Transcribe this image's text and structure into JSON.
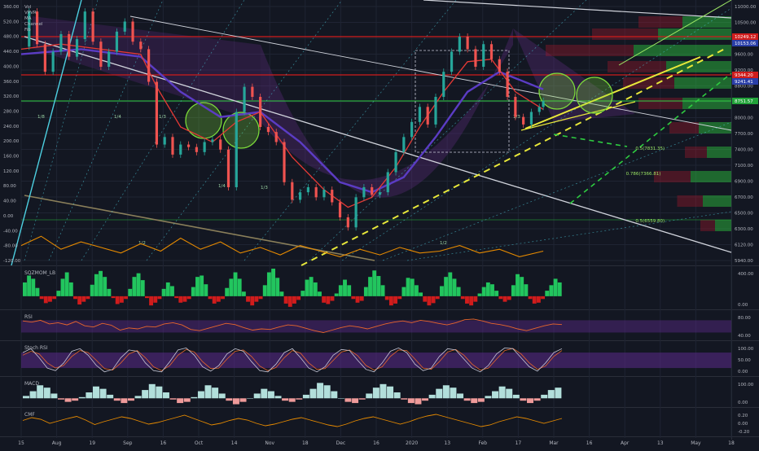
{
  "colors": {
    "background": "#131722",
    "grid": "#1f2433",
    "axis_text": "#b2b5be",
    "candle_up": "#26a69a",
    "candle_down": "#ef5350",
    "ema_fast": "#e53935",
    "ema_slow": "#5b3cc4",
    "volume_line": "#e68a00",
    "rsi_line": "#e8662b",
    "stoch_k": "#c7c7d6",
    "stoch_d": "#e8662b",
    "cmf_line": "#e68a00",
    "mom_up": "#22c55e",
    "mom_down": "#d01c1c",
    "yellow_trend": "#e8e83a",
    "green_trend": "#2ecc40",
    "circle": "#7ddc3a",
    "rsi_band": "#5b2a8a"
  },
  "chart_data": [
    {
      "type": "line",
      "name": "main-price",
      "candle_interval": "day",
      "x_tick_labels": [
        "15",
        "Aug",
        "19",
        "Sep",
        "16",
        "Oct",
        "14",
        "Nov",
        "18",
        "Dec",
        "16",
        "2020",
        "13",
        "Feb",
        "17",
        "Mar",
        "16",
        "Apr",
        "13",
        "May",
        "18"
      ],
      "left_axis_labels": [
        "360.00",
        "520.00",
        "480.00",
        "440.00",
        "400.00",
        "360.00",
        "320.00",
        "280.00",
        "240.00",
        "200.00",
        "160.00",
        "120.00",
        "80.00",
        "40.00",
        "0.00",
        "-40.00",
        "-80.00",
        "-120.00"
      ],
      "right_axis_labels": [
        "11000.00",
        "10500.00",
        "10000.00",
        "9600.00",
        "9200.00",
        "8800.00",
        "8400.00",
        "8000.00",
        "7700.00",
        "7400.00",
        "7100.00",
        "6900.00",
        "6700.00",
        "6500.00",
        "6300.00",
        "6120.00",
        "5940.00"
      ],
      "price_ylim": [
        5940,
        11000
      ],
      "legend_entries": [
        "Vol",
        "VPVR",
        "MA",
        "Channel",
        "Fib"
      ],
      "price_tags": [
        {
          "value": "10249.12",
          "color": "#d01c1c"
        },
        {
          "value": "10153.06",
          "color": "#2a3fa8"
        },
        {
          "value": "9344.20",
          "color": "#d01c1c"
        },
        {
          "value": "9241.41",
          "color": "#2a3fa8"
        },
        {
          "value": "8751.57",
          "color": "#22a33a"
        }
      ],
      "fib_labels": [
        "0.5(7831.35)",
        "0.786(7366.81)",
        "0.5(6559.80)"
      ],
      "fan_labels": [
        "1/8",
        "1/4",
        "1/3",
        "1/4",
        "1/3",
        "1/2",
        "1/3",
        "1/2"
      ],
      "price_path": [
        [
          0,
          10200
        ],
        [
          4,
          10900
        ],
        [
          8,
          10250
        ],
        [
          12,
          9700
        ],
        [
          16,
          10100
        ],
        [
          20,
          10450
        ],
        [
          24,
          10000
        ],
        [
          28,
          10350
        ],
        [
          32,
          10900
        ],
        [
          36,
          10300
        ],
        [
          40,
          9800
        ],
        [
          44,
          10100
        ],
        [
          48,
          10500
        ],
        [
          52,
          10700
        ],
        [
          56,
          10300
        ],
        [
          60,
          10150
        ],
        [
          64,
          9500
        ],
        [
          68,
          8250
        ],
        [
          72,
          8400
        ],
        [
          76,
          8050
        ],
        [
          80,
          8250
        ],
        [
          84,
          8200
        ],
        [
          88,
          8100
        ],
        [
          92,
          8300
        ],
        [
          96,
          8350
        ],
        [
          100,
          8150
        ],
        [
          104,
          7400
        ],
        [
          108,
          8900
        ],
        [
          112,
          9400
        ],
        [
          116,
          9200
        ],
        [
          120,
          8600
        ],
        [
          124,
          8500
        ],
        [
          128,
          8300
        ],
        [
          132,
          7500
        ],
        [
          136,
          7150
        ],
        [
          140,
          7300
        ],
        [
          144,
          7400
        ],
        [
          148,
          7200
        ],
        [
          152,
          7350
        ],
        [
          156,
          7100
        ],
        [
          160,
          6800
        ],
        [
          164,
          6600
        ],
        [
          168,
          7200
        ],
        [
          172,
          7400
        ],
        [
          176,
          7250
        ],
        [
          180,
          7300
        ],
        [
          184,
          7700
        ],
        [
          188,
          8100
        ],
        [
          192,
          8400
        ],
        [
          196,
          8700
        ],
        [
          200,
          9000
        ],
        [
          204,
          8650
        ],
        [
          208,
          9200
        ],
        [
          212,
          9700
        ],
        [
          216,
          10100
        ],
        [
          220,
          10400
        ],
        [
          224,
          10150
        ],
        [
          228,
          9800
        ],
        [
          232,
          10250
        ],
        [
          236,
          9950
        ],
        [
          240,
          9700
        ],
        [
          244,
          9200
        ],
        [
          248,
          8800
        ],
        [
          252,
          8650
        ],
        [
          256,
          8900
        ],
        [
          260,
          9000
        ],
        [
          262,
          9120
        ]
      ],
      "ema_fast_path": [
        [
          0,
          10150
        ],
        [
          20,
          10250
        ],
        [
          40,
          10150
        ],
        [
          60,
          10050
        ],
        [
          68,
          9400
        ],
        [
          80,
          8600
        ],
        [
          96,
          8300
        ],
        [
          108,
          8700
        ],
        [
          120,
          8900
        ],
        [
          136,
          8000
        ],
        [
          152,
          7350
        ],
        [
          164,
          7000
        ],
        [
          176,
          7200
        ],
        [
          188,
          7800
        ],
        [
          200,
          8600
        ],
        [
          212,
          9300
        ],
        [
          224,
          9900
        ],
        [
          236,
          9950
        ],
        [
          248,
          9300
        ],
        [
          262,
          8950
        ]
      ],
      "ema_slow_path": [
        [
          0,
          10050
        ],
        [
          30,
          10150
        ],
        [
          60,
          10000
        ],
        [
          80,
          9300
        ],
        [
          100,
          8800
        ],
        [
          120,
          8900
        ],
        [
          140,
          8300
        ],
        [
          160,
          7500
        ],
        [
          176,
          7300
        ],
        [
          192,
          7600
        ],
        [
          208,
          8400
        ],
        [
          224,
          9300
        ],
        [
          240,
          9700
        ],
        [
          262,
          9350
        ]
      ],
      "volume_path": [
        [
          0,
          -80
        ],
        [
          10,
          -55
        ],
        [
          20,
          -90
        ],
        [
          30,
          -70
        ],
        [
          40,
          -85
        ],
        [
          50,
          -100
        ],
        [
          60,
          -75
        ],
        [
          70,
          -95
        ],
        [
          80,
          -60
        ],
        [
          90,
          -90
        ],
        [
          100,
          -70
        ],
        [
          110,
          -100
        ],
        [
          120,
          -85
        ],
        [
          130,
          -105
        ],
        [
          140,
          -80
        ],
        [
          150,
          -95
        ],
        [
          160,
          -110
        ],
        [
          170,
          -90
        ],
        [
          180,
          -105
        ],
        [
          190,
          -85
        ],
        [
          200,
          -100
        ],
        [
          210,
          -95
        ],
        [
          220,
          -80
        ],
        [
          230,
          -100
        ],
        [
          240,
          -90
        ],
        [
          250,
          -110
        ],
        [
          262,
          -95
        ]
      ],
      "x_max": 340
    },
    {
      "type": "bar",
      "name": "SQZMOM_LB",
      "title": "SQZMOM_LB",
      "axis_labels": [
        "400.00",
        "0.00"
      ],
      "ylim": [
        -250,
        600
      ],
      "values": [
        300,
        450,
        380,
        180,
        -60,
        -150,
        -120,
        -60,
        120,
        380,
        520,
        300,
        -60,
        -180,
        -120,
        -60,
        250,
        480,
        550,
        420,
        160,
        -40,
        -170,
        -140,
        -60,
        160,
        420,
        500,
        350,
        -40,
        -200,
        -140,
        -60,
        160,
        300,
        220,
        -40,
        -140,
        -120,
        -60,
        200,
        420,
        450,
        260,
        -60,
        -160,
        -120,
        -60,
        180,
        380,
        520,
        380,
        100,
        -120,
        -200,
        -120,
        -60,
        240,
        520,
        600,
        400,
        100,
        -160,
        -230,
        -160,
        -80,
        120,
        360,
        420,
        300,
        100,
        -140,
        -170,
        -100,
        60,
        240,
        360,
        240,
        -60,
        -140,
        -100,
        200,
        420,
        560,
        440,
        240,
        -80,
        -200,
        -160,
        -60,
        200,
        400,
        380,
        240,
        80,
        -120,
        -200,
        -150,
        -60,
        220,
        420,
        520,
        380,
        200,
        -60,
        -160,
        -200,
        -120,
        60,
        200,
        300,
        260,
        120,
        -60,
        -120,
        -80,
        240,
        480,
        420,
        260,
        -60,
        -160,
        -140,
        -60,
        120,
        240,
        380,
        300
      ]
    },
    {
      "type": "line",
      "name": "RSI",
      "title": "RSI",
      "axis_labels": [
        "80.00",
        "40.00"
      ],
      "ylim": [
        10,
        95
      ],
      "band": [
        30,
        70
      ],
      "values": [
        68,
        64,
        70,
        58,
        62,
        55,
        66,
        52,
        48,
        60,
        54,
        38,
        45,
        42,
        50,
        48,
        58,
        62,
        55,
        40,
        36,
        44,
        52,
        60,
        56,
        46,
        38,
        42,
        40,
        48,
        55,
        52,
        44,
        36,
        30,
        38,
        46,
        52,
        48,
        42,
        50,
        58,
        64,
        68,
        62,
        70,
        66,
        60,
        55,
        62,
        72,
        74,
        68,
        60,
        56,
        50,
        42,
        36,
        44,
        52,
        58,
        56
      ]
    },
    {
      "type": "line",
      "name": "Stoch RSI",
      "title": "Stoch RSI",
      "axis_labels": [
        "100.00",
        "50.00",
        "0.00"
      ],
      "ylim": [
        -5,
        115
      ],
      "band": [
        20,
        80
      ],
      "k": [
        80,
        95,
        60,
        20,
        10,
        40,
        85,
        95,
        70,
        30,
        5,
        15,
        60,
        90,
        85,
        40,
        10,
        5,
        45,
        90,
        98,
        70,
        25,
        8,
        30,
        75,
        95,
        85,
        45,
        10,
        5,
        35,
        80,
        95,
        60,
        20,
        5,
        25,
        70,
        92,
        88,
        50,
        15,
        5,
        40,
        85,
        98,
        80,
        35,
        10,
        20,
        65,
        95,
        90,
        55,
        20,
        5,
        30,
        75,
        98,
        95,
        60,
        25,
        8,
        40,
        80,
        95
      ],
      "d": [
        70,
        85,
        75,
        40,
        20,
        30,
        65,
        88,
        80,
        50,
        18,
        12,
        40,
        75,
        88,
        60,
        25,
        10,
        30,
        70,
        92,
        82,
        45,
        18,
        20,
        55,
        85,
        90,
        65,
        28,
        10,
        22,
        60,
        88,
        78,
        40,
        15,
        18,
        50,
        82,
        90,
        68,
        30,
        12,
        25,
        65,
        90,
        88,
        55,
        20,
        15,
        45,
        82,
        92,
        70,
        35,
        12,
        20,
        55,
        88,
        96,
        75,
        40,
        15,
        28,
        65,
        88
      ]
    },
    {
      "type": "bar",
      "name": "MACD",
      "title": "MACD",
      "axis_labels": [
        "100.00",
        "0.00"
      ],
      "ylim": [
        -60,
        160
      ],
      "values": [
        20,
        60,
        110,
        90,
        40,
        -10,
        -30,
        -20,
        10,
        50,
        100,
        80,
        30,
        -20,
        -40,
        -20,
        20,
        70,
        120,
        100,
        50,
        -10,
        -40,
        -30,
        10,
        60,
        110,
        90,
        40,
        -20,
        -50,
        -30,
        0,
        40,
        80,
        60,
        20,
        -20,
        -30,
        -10,
        30,
        80,
        130,
        110,
        60,
        0,
        -30,
        -40,
        -10,
        40,
        90,
        120,
        100,
        50,
        -10,
        -40,
        -50,
        -20,
        30,
        80,
        110,
        90,
        40,
        -20,
        -40,
        -30,
        20,
        60,
        100,
        80,
        30,
        -20,
        -40,
        -20,
        30,
        70,
        90
      ]
    },
    {
      "type": "line",
      "name": "CMF",
      "title": "CMF",
      "axis_labels": [
        "0.20",
        "0.00",
        "-0.20"
      ],
      "ylim": [
        -0.3,
        0.3
      ],
      "values": [
        0.05,
        0.12,
        0.08,
        -0.02,
        0.04,
        0.1,
        0.15,
        0.06,
        -0.05,
        0.02,
        0.08,
        0.14,
        0.1,
        0.03,
        -0.04,
        0.0,
        0.06,
        0.12,
        0.18,
        0.1,
        0.02,
        -0.06,
        -0.02,
        0.05,
        0.1,
        0.06,
        -0.02,
        -0.08,
        -0.04,
        0.02,
        0.08,
        0.12,
        0.06,
        0.0,
        -0.06,
        -0.1,
        -0.04,
        0.04,
        0.1,
        0.14,
        0.08,
        0.02,
        -0.04,
        0.02,
        0.1,
        0.16,
        0.2,
        0.14,
        0.08,
        0.02,
        -0.04,
        -0.1,
        -0.06,
        0.02,
        0.08,
        0.14,
        0.1,
        0.04,
        -0.02,
        0.04,
        0.1
      ]
    }
  ]
}
